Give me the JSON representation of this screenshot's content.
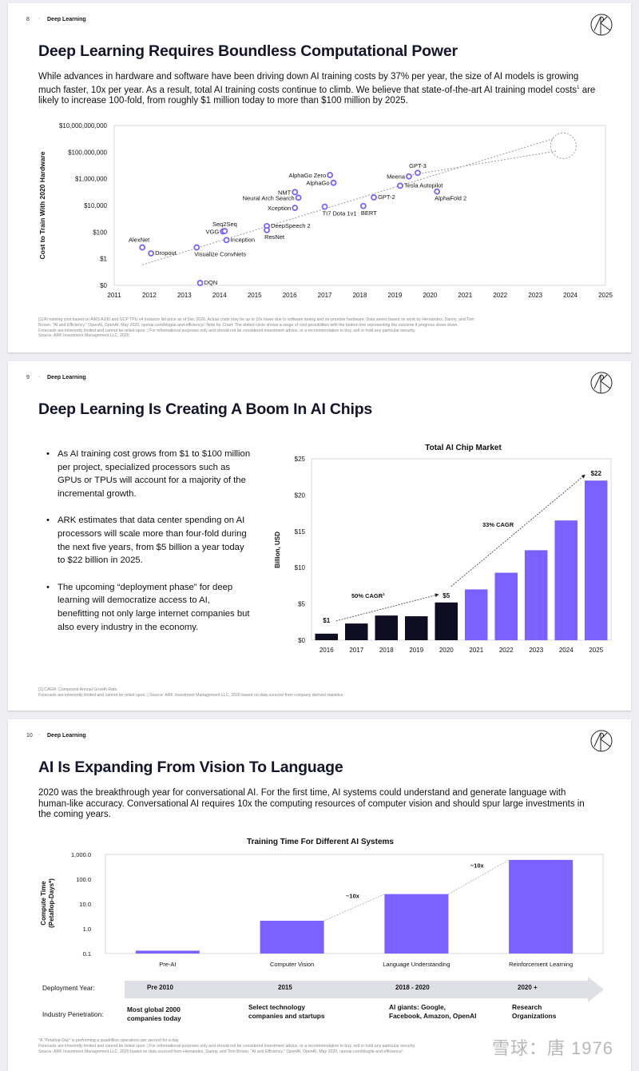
{
  "slides": [
    {
      "page_number": "8",
      "section": "Deep Learning",
      "title": "Deep Learning Requires Boundless Computational Power",
      "intro_part1": "While advances in hardware and software have been driving down AI training costs by 37% per year, the size of AI models is growing much faster, 10x per year. As a result, total AI training costs continue to climb. We believe that state-of-the-art AI training model costs",
      "intro_sup": "1",
      "intro_part2": " are likely to increase 100-fold, from roughly $1 million today to more than $100 million by 2025.",
      "footnotes": [
        "[1] AI training cost based on AWS A100 and GCP TPU v4 instance list price as of Dec 2020. Actual costs may be up to 10x lower due to software tuning and on-premise hardware. Data series based on work by Hernandez, Danny, and Tom",
        "Brown. \"AI and Efficiency.\" OpenAI, OpenAI, May 2020, openai.com/blog/ai-and-efficiency/. Note for Chart: The dotted circle shows a range of cost possibilities with the bottom line representing the outcome if progress slows down.",
        "Forecasts are inherently limited and cannot be relied upon.  |  For informational purposes only and should not be considered investment advice, or a recommendation to buy, sell or hold any particular security.",
        "Source: ARK Investment Management LLC, 2020"
      ]
    },
    {
      "page_number": "9",
      "section": "Deep Learning",
      "title": "Deep Learning Is Creating A Boom In AI Chips",
      "bullets": [
        "As AI training cost grows from $1 to $100 million per project, specialized processors such as GPUs or TPUs will account for a majority of the incremental growth.",
        "ARK estimates that data center spending on AI processors will scale more than four-fold during the next five years, from $5 billion a year today to $22 billion in 2025.",
        "The upcoming “deployment phase” for deep learning will democratize access to AI, benefitting not only large internet companies but also every industry in the economy."
      ],
      "bullet_glyph": "•",
      "footnotes": [
        "[1] CAGR: Compound Annual Growth Rate.",
        "Forecasts are inherently limited and cannot be relied upon.  |  Source: ARK Investment Management LLC, 2020 based on data sourced from company derived statistics."
      ]
    },
    {
      "page_number": "10",
      "section": "Deep Learning",
      "title": "AI Is Expanding From Vision To Language",
      "intro": "2020 was the breakthrough year for conversational AI. For the first time, AI systems could understand and generate language with human-like accuracy. Conversational AI requires 10x the computing resources of computer vision and should spur large investments in the coming years.",
      "deployment_label": "Deployment Year:",
      "deployment_years": [
        "Pre 2010",
        "2015",
        "2018 - 2020",
        "2020 +"
      ],
      "penetration_label": "Industry Penetration:",
      "penetration": [
        [
          "Most global 2000",
          "companies today"
        ],
        [
          "Select technology",
          "companies and startups"
        ],
        [
          "AI giants: Google,",
          "Facebook, Amazon, OpenAI"
        ],
        [
          "Research",
          "Organizations"
        ]
      ],
      "footnotes": [
        "*A \"Petaflop-Day\" is performing a quadrillion operations per second for a day.",
        "Forecasts are inherently limited and cannot be relied upon.  |  For informational purposes only and should not be considered investment advice, or a recommendation to buy, sell or hold any particular security.",
        "Source: ARK Investment Management LLC, 2020 based on data sourced from Hernandez, Danny, and Tom Brown. \"AI and Efficiency.\" OpenAI, OpenAI, May 2020, openai.com/blog/ai-and-efficiency/."
      ],
      "watermark": "雪球：唐 1976"
    }
  ],
  "colors": {
    "accent_purple": "#7b61ff",
    "dark_navy": "#0e0d22",
    "title_navy": "#14142b",
    "grid": "#d8d8d8",
    "arrow_band": "#dfe0e6"
  },
  "chart_data": [
    {
      "type": "scatter",
      "title": "",
      "xlabel": "",
      "ylabel": "Cost to Train With 2020 Hardware",
      "yscale": "log",
      "ylim": [
        0.01,
        10000000000
      ],
      "xlim": [
        2011,
        2025
      ],
      "x_ticks": [
        "2011",
        "2012",
        "2013",
        "2014",
        "2015",
        "2016",
        "2017",
        "2018",
        "2019",
        "2020",
        "2021",
        "2022",
        "2023",
        "2024",
        "2025"
      ],
      "y_ticks": [
        {
          "value": 0.01,
          "label": "$0"
        },
        {
          "value": 1,
          "label": "$1"
        },
        {
          "value": 100,
          "label": "$100"
        },
        {
          "value": 10000,
          "label": "$10,000"
        },
        {
          "value": 1000000,
          "label": "$1,000,000"
        },
        {
          "value": 100000000,
          "label": "$100,000,000"
        },
        {
          "value": 10000000000,
          "label": "$10,000,000,000"
        }
      ],
      "points": [
        {
          "name": "AlexNet",
          "x": 2011.8,
          "y": 7,
          "label_pos": "above-left"
        },
        {
          "name": "Dropout",
          "x": 2012.05,
          "y": 2.5,
          "label_pos": "right"
        },
        {
          "name": "Visualize ConvNets",
          "x": 2013.35,
          "y": 7,
          "label_pos": "below"
        },
        {
          "name": "DQN",
          "x": 2013.45,
          "y": 0.015,
          "label_pos": "right"
        },
        {
          "name": "VGG",
          "x": 2014.1,
          "y": 110,
          "label_pos": "left"
        },
        {
          "name": "Seq2Seq",
          "x": 2014.15,
          "y": 120,
          "label_pos": "above"
        },
        {
          "name": "Inception",
          "x": 2014.2,
          "y": 25,
          "label_pos": "right"
        },
        {
          "name": "DeepSpeech 2",
          "x": 2015.35,
          "y": 280,
          "label_pos": "right"
        },
        {
          "name": "ResNet",
          "x": 2015.35,
          "y": 140,
          "label_pos": "below"
        },
        {
          "name": "NMT",
          "x": 2016.15,
          "y": 100000,
          "label_pos": "left"
        },
        {
          "name": "Neural Arch Search",
          "x": 2016.25,
          "y": 38000,
          "label_pos": "left"
        },
        {
          "name": "Xception",
          "x": 2016.15,
          "y": 6500,
          "label_pos": "left"
        },
        {
          "name": "AlphaGo Zero",
          "x": 2017.15,
          "y": 1900000,
          "label_pos": "left"
        },
        {
          "name": "AlphaGo",
          "x": 2017.25,
          "y": 500000,
          "label_pos": "left"
        },
        {
          "name": "TI7 Dota 1v1",
          "x": 2017.0,
          "y": 8000,
          "label_pos": "below"
        },
        {
          "name": "BERT",
          "x": 2018.1,
          "y": 9000,
          "label_pos": "below"
        },
        {
          "name": "GPT-2",
          "x": 2018.4,
          "y": 40000,
          "label_pos": "right"
        },
        {
          "name": "Tesla Autopilot",
          "x": 2019.15,
          "y": 300000,
          "label_pos": "right"
        },
        {
          "name": "Meena",
          "x": 2019.4,
          "y": 1500000,
          "label_pos": "left"
        },
        {
          "name": "GPT-3",
          "x": 2019.65,
          "y": 2800000,
          "label_pos": "above"
        },
        {
          "name": "AlphaFold 2",
          "x": 2020.2,
          "y": 110000,
          "label_pos": "below"
        }
      ],
      "trend_line": {
        "style": "dotted",
        "from": [
          2011.8,
          0.35
        ],
        "to": [
          2023.5,
          1000000000
        ]
      },
      "trend_line_lower": {
        "style": "dotted",
        "from": [
          2019.5,
          2000000
        ],
        "to": [
          2023.6,
          120000000
        ]
      },
      "forecast_circle": {
        "center": [
          2023.8,
          300000000
        ],
        "note": "range of cost possibilities"
      },
      "grid": false,
      "legend": "none"
    },
    {
      "type": "bar",
      "title": "Total AI Chip Market",
      "xlabel": "",
      "ylabel": "Billion, USD",
      "ylim": [
        0,
        25
      ],
      "y_ticks": [
        "$0",
        "$5",
        "$10",
        "$15",
        "$20",
        "$25"
      ],
      "categories": [
        "2016",
        "2017",
        "2018",
        "2019",
        "2020",
        "2021",
        "2022",
        "2023",
        "2024",
        "2025"
      ],
      "values": [
        0.9,
        2.3,
        3.4,
        3.3,
        5.2,
        7.0,
        9.3,
        12.4,
        16.5,
        22.0
      ],
      "bar_colors": [
        "dark",
        "dark",
        "dark",
        "dark",
        "dark",
        "purple",
        "purple",
        "purple",
        "purple",
        "purple"
      ],
      "data_labels": [
        {
          "category": "2016",
          "text": "$1"
        },
        {
          "category": "2020",
          "text": "$5"
        },
        {
          "category": "2025",
          "text": "$22"
        }
      ],
      "annotations": [
        {
          "text": "50% CAGR",
          "sup": "1",
          "from": "2016",
          "to": "2020"
        },
        {
          "text": "33% CAGR",
          "from": "2020",
          "to": "2025"
        }
      ],
      "legend": "none"
    },
    {
      "type": "bar",
      "title": "Training Time For Different AI Systems",
      "xlabel": "",
      "ylabel": "Compute Time (Petaflop-Days*)",
      "ylabel_lines": [
        "Compute Time",
        "(Petaflop-Days*)"
      ],
      "yscale": "log",
      "ylim": [
        0.1,
        1000
      ],
      "y_ticks": [
        "0.1",
        "1.0",
        "10.0",
        "100.0",
        "1,000.0"
      ],
      "categories": [
        "Pre-AI",
        "Computer Vision",
        "Language Understanding",
        "Reinforcement Learning"
      ],
      "values": [
        0.13,
        2.1,
        25,
        600
      ],
      "annotations": [
        {
          "text": "~10x",
          "from": "Computer Vision",
          "to": "Language Understanding"
        },
        {
          "text": "~10x",
          "from": "Language Understanding",
          "to": "Reinforcement Learning"
        }
      ],
      "legend": "none"
    }
  ]
}
